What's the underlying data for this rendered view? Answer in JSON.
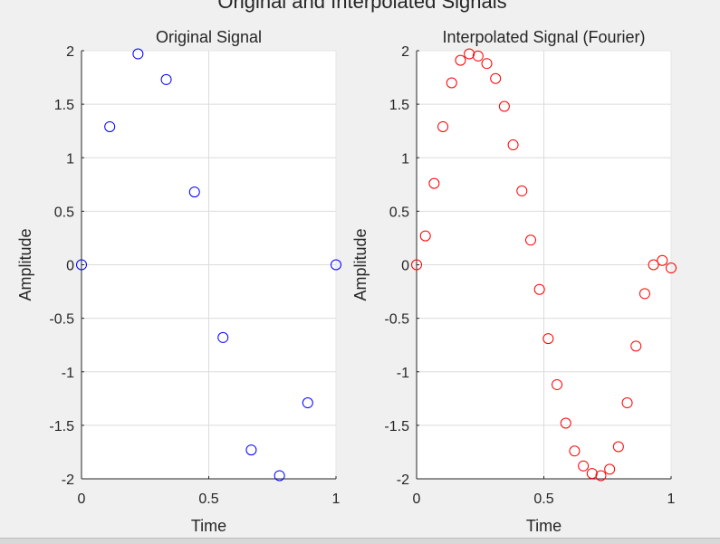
{
  "figure": {
    "suptitle": "Original and Interpolated Signals"
  },
  "chart_data": [
    {
      "type": "scatter",
      "title": "Original Signal",
      "xlabel": "Time",
      "ylabel": "Amplitude",
      "xlim": [
        0,
        1
      ],
      "ylim": [
        -2,
        2
      ],
      "grid": true,
      "marker": "open-circle",
      "color": "#0000ff",
      "xticks": [
        0,
        0.5,
        1
      ],
      "xtick_labels": [
        "0",
        "0.5",
        "1"
      ],
      "yticks": [
        -2,
        -1.5,
        -1,
        -0.5,
        0,
        0.5,
        1,
        1.5,
        2
      ],
      "ytick_labels": [
        "-2",
        "-1.5",
        "-1",
        "-0.5",
        "0",
        "0.5",
        "1",
        "1.5",
        "2"
      ],
      "x": [
        0,
        0.111,
        0.222,
        0.333,
        0.444,
        0.556,
        0.667,
        0.778,
        0.889,
        1
      ],
      "y": [
        0,
        1.29,
        1.97,
        1.73,
        0.68,
        -0.68,
        -1.73,
        -1.97,
        -1.29,
        0
      ]
    },
    {
      "type": "scatter",
      "title": "Interpolated Signal (Fourier)",
      "xlabel": "Time",
      "ylabel": "Amplitude",
      "xlim": [
        0,
        1
      ],
      "ylim": [
        -2,
        2
      ],
      "grid": true,
      "marker": "open-circle",
      "color": "#ff0000",
      "xticks": [
        0,
        0.5,
        1
      ],
      "xtick_labels": [
        "0",
        "0.5",
        "1"
      ],
      "yticks": [
        -2,
        -1.5,
        -1,
        -0.5,
        0,
        0.5,
        1,
        1.5,
        2
      ],
      "ytick_labels": [
        "-2",
        "-1.5",
        "-1",
        "-0.5",
        "0",
        "0.5",
        "1",
        "1.5",
        "2"
      ],
      "x": [
        0,
        0.0345,
        0.069,
        0.1034,
        0.1379,
        0.1724,
        0.2069,
        0.2414,
        0.2759,
        0.3103,
        0.3448,
        0.3793,
        0.4138,
        0.4483,
        0.4828,
        0.5172,
        0.5517,
        0.5862,
        0.6207,
        0.6552,
        0.6897,
        0.7241,
        0.7586,
        0.7931,
        0.8276,
        0.8621,
        0.8966,
        0.931,
        0.9655,
        1
      ],
      "y": [
        0,
        0.27,
        0.76,
        1.29,
        1.7,
        1.91,
        1.97,
        1.95,
        1.88,
        1.74,
        1.48,
        1.12,
        0.69,
        0.23,
        -0.23,
        -0.69,
        -1.12,
        -1.48,
        -1.74,
        -1.88,
        -1.95,
        -1.97,
        -1.91,
        -1.7,
        -1.29,
        -0.76,
        -0.27,
        0,
        0.04,
        -0.03
      ]
    }
  ]
}
